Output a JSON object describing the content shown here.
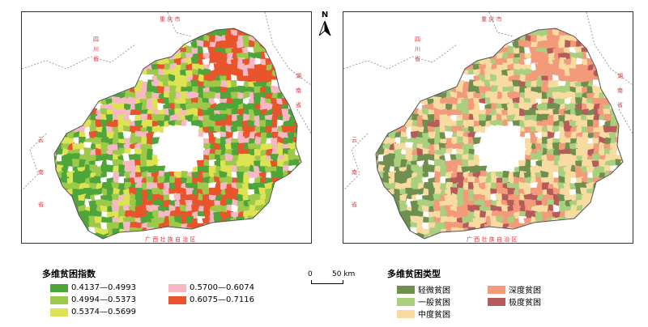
{
  "north_label": "N",
  "scale": {
    "zero": "0",
    "distance": "50 km"
  },
  "provinces": {
    "chongqing": "重 庆 市",
    "sichuan": "四 川 省",
    "hunan": "湖 南 省",
    "yunnan": "云 南 省",
    "guangxi": "广 西 壮 族 自 治 区"
  },
  "legend_left": {
    "title": "多维贫困指数",
    "items": [
      {
        "label": "0.4137—0.4993",
        "color": "#4ea53a"
      },
      {
        "label": "0.4994—0.5373",
        "color": "#9cc94a"
      },
      {
        "label": "0.5374—0.5699",
        "color": "#dde353"
      },
      {
        "label": "0.5700—0.6074",
        "color": "#f5b8c4"
      },
      {
        "label": "0.6075—0.7116",
        "color": "#e8542b"
      }
    ]
  },
  "legend_right": {
    "title": "多维贫困类型",
    "items": [
      {
        "label": "轻微贫困",
        "color": "#6f8f4e"
      },
      {
        "label": "一般贫困",
        "color": "#a9cf7f"
      },
      {
        "label": "中度贫困",
        "color": "#f8dba1"
      },
      {
        "label": "深度贫困",
        "color": "#f39a7a"
      },
      {
        "label": "极度贫困",
        "color": "#b65a5c"
      }
    ]
  },
  "outside_fill": "#ffffff",
  "city_fill": "#ffffff"
}
